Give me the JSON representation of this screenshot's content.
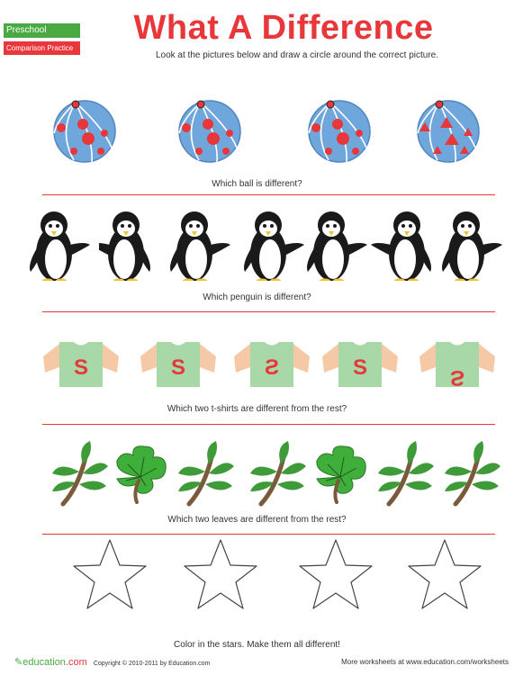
{
  "header": {
    "tag_primary": "Preschool",
    "tag_secondary": "Comparison Practice",
    "title": "What A Difference",
    "instructions": "Look at the pictures below and draw a circle around the correct picture."
  },
  "sections": [
    {
      "question": "Which ball is different?"
    },
    {
      "question": "Which penguin is different?"
    },
    {
      "question": "Which two t-shirts are different from the rest?"
    },
    {
      "question": "Which two leaves are different from the rest?"
    },
    {
      "question": "Color in the stars. Make them all different!"
    }
  ],
  "shirt_letter": "S",
  "footer": {
    "logo_text": "education",
    "logo_suffix": ".com",
    "copyright": "Copyright © 2010-2011 by Education.com",
    "more": "More worksheets at www.education.com/worksheets"
  },
  "colors": {
    "accent_red": "#e8373b",
    "accent_green": "#49a942",
    "ball_blue": "#6fa7dc",
    "shirt_green": "#a8d8a8",
    "sleeve_peach": "#f6c9a6",
    "leaf_green": "#3f9a3a",
    "stem_brown": "#7a5a3a"
  }
}
